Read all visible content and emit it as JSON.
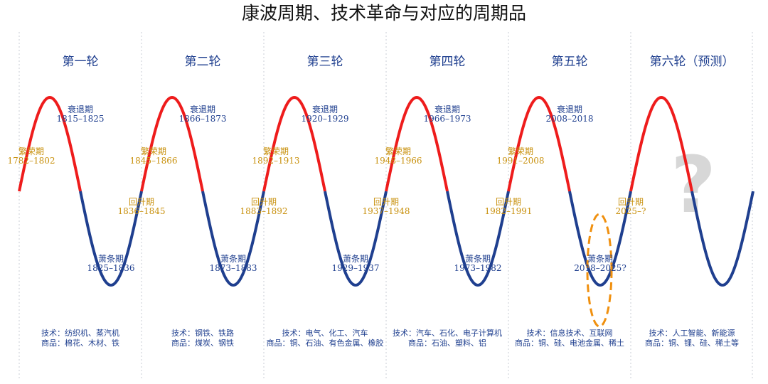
{
  "title": "康波周期、技术革命与对应的周期品",
  "colors": {
    "upswing": "#ee1c1c",
    "downswing": "#1f3f8f",
    "label_upswing": "#c8900c",
    "label_downswing": "#1f3f8f",
    "highlight": "#f0900f",
    "question": "#d7d7d7"
  },
  "rounds": [
    {
      "name": "第一轮",
      "prosperity": [
        "繁荣期",
        "1782–1802"
      ],
      "decline": [
        "衰退期",
        "1815–1825"
      ],
      "depression": [
        "萧条期",
        "1825–1836"
      ],
      "recovery": [
        "回升期",
        "1836–1845"
      ],
      "tech": "技术：纺织机、蒸汽机",
      "goods": "商品：棉花、木材、铁"
    },
    {
      "name": "第二轮",
      "prosperity": [
        "繁荣期",
        "1845–1866"
      ],
      "decline": [
        "衰退期",
        "1866–1873"
      ],
      "depression": [
        "萧条期",
        "1873–1883"
      ],
      "recovery": [
        "回升期",
        "1883–1892"
      ],
      "tech": "技术：钢铁、铁路",
      "goods": "商品：煤炭、钢铁"
    },
    {
      "name": "第三轮",
      "prosperity": [
        "繁荣期",
        "1892–1913"
      ],
      "decline": [
        "衰退期",
        "1920–1929"
      ],
      "depression": [
        "萧条期",
        "1929–1937"
      ],
      "recovery": [
        "回升期",
        "1937–1948"
      ],
      "tech": "技术：电气、化工、汽车",
      "goods": "商品：铜、石油、有色金属、橡胶"
    },
    {
      "name": "第四轮",
      "prosperity": [
        "繁荣期",
        "1948–1966"
      ],
      "decline": [
        "衰退期",
        "1966–1973"
      ],
      "depression": [
        "萧条期",
        "1973–1982"
      ],
      "recovery": [
        "回升期",
        "1982–1991"
      ],
      "tech": "技术：汽车、石化、电子计算机",
      "goods": "商品：石油、塑料、铝"
    },
    {
      "name": "第五轮",
      "prosperity": [
        "繁荣期",
        "1991–2008"
      ],
      "decline": [
        "衰退期",
        "2008–2018"
      ],
      "depression": [
        "萧条期",
        "2018–2025?"
      ],
      "recovery": [
        "回升期",
        "2025–?"
      ],
      "tech": "技术：信息技术、互联网",
      "goods": "商品：铜、硅、电池金属、稀土"
    },
    {
      "name": "第六轮（预测）",
      "question_mark": "?",
      "tech": "技术：人工智能、新能源",
      "goods": "商品：铜、锂、硅、稀土等"
    }
  ]
}
